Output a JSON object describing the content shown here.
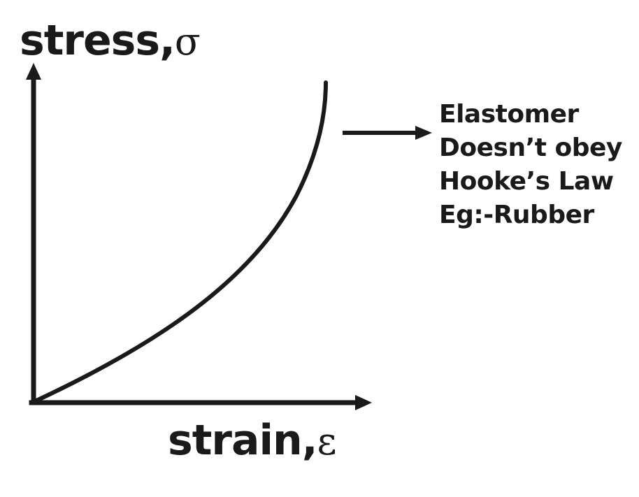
{
  "diagram": {
    "y_axis": {
      "label": "stress,",
      "symbol": "σ"
    },
    "x_axis": {
      "label": "strain,",
      "symbol": "ε"
    },
    "curve": "Elastomer",
    "annotation_lines": [
      "Elastomer",
      "Doesn’t obey",
      "Hooke’s Law",
      "Eg:-Rubber"
    ],
    "line_color": "#1a1a1a"
  }
}
